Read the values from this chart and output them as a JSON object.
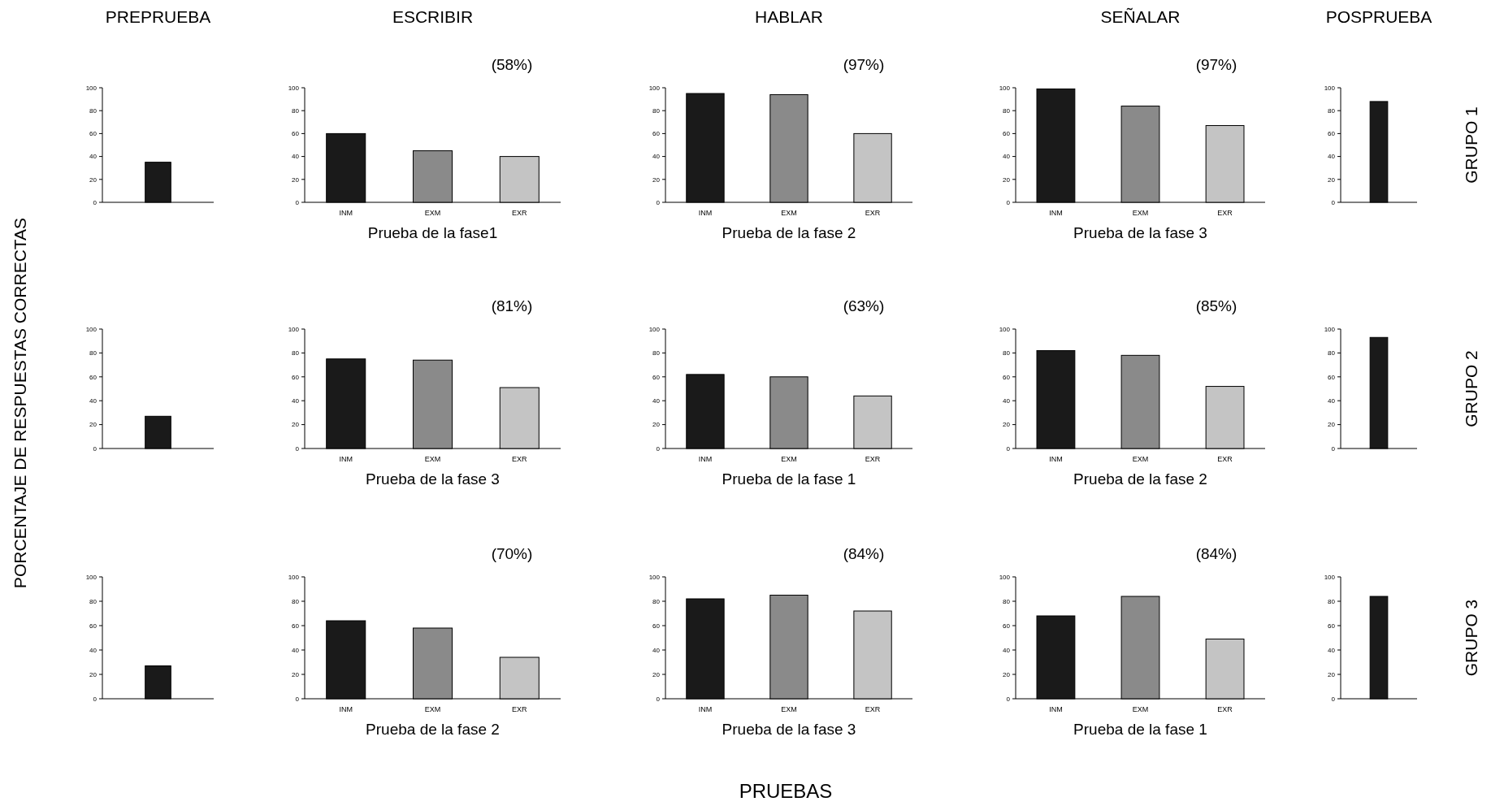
{
  "chart_data": [
    {
      "type": "bar",
      "title": "PREPRUEBA",
      "categories": [
        null
      ],
      "values": [
        35
      ],
      "colors": [
        "#1a1a1a"
      ],
      "ylim": [
        0,
        100
      ],
      "yticks": [
        0,
        20,
        40,
        60,
        80,
        100
      ]
    },
    {
      "type": "bar",
      "title": "ESCRIBIR",
      "xlabel": "Prueba de la fase1",
      "annotations": [
        "(58%)"
      ],
      "categories": [
        "INM",
        "EXM",
        "EXR"
      ],
      "values": [
        60,
        45,
        40
      ],
      "colors": [
        "#1a1a1a",
        "#8a8a8a",
        "#c4c4c4"
      ],
      "ylim": [
        0,
        100
      ],
      "yticks": [
        0,
        20,
        40,
        60,
        80,
        100
      ]
    },
    {
      "type": "bar",
      "title": "HABLAR",
      "xlabel": "Prueba de la fase 2",
      "annotations": [
        "(97%)"
      ],
      "categories": [
        "INM",
        "EXM",
        "EXR"
      ],
      "values": [
        95,
        94,
        60
      ],
      "colors": [
        "#1a1a1a",
        "#8a8a8a",
        "#c4c4c4"
      ],
      "ylim": [
        0,
        100
      ],
      "yticks": [
        0,
        20,
        40,
        60,
        80,
        100
      ]
    },
    {
      "type": "bar",
      "title": "SEÑALAR",
      "xlabel": "Prueba de la fase 3",
      "annotations": [
        "(97%)"
      ],
      "categories": [
        "INM",
        "EXM",
        "EXR"
      ],
      "values": [
        99,
        84,
        67
      ],
      "colors": [
        "#1a1a1a",
        "#8a8a8a",
        "#c4c4c4"
      ],
      "ylim": [
        0,
        100
      ],
      "yticks": [
        0,
        20,
        40,
        60,
        80,
        100
      ]
    },
    {
      "type": "bar",
      "title": "POSPRUEBA",
      "annotations": [
        "GRUPO 1"
      ],
      "categories": [
        null
      ],
      "values": [
        88
      ],
      "colors": [
        "#1a1a1a"
      ],
      "ylim": [
        0,
        100
      ],
      "yticks": [
        0,
        20,
        40,
        60,
        80,
        100
      ]
    },
    {
      "type": "bar",
      "ylabel": "PORCENTAJE DE RESPUESTAS CORRECTAS",
      "categories": [
        null
      ],
      "values": [
        27
      ],
      "colors": [
        "#1a1a1a"
      ],
      "ylim": [
        0,
        100
      ],
      "yticks": [
        0,
        20,
        40,
        60,
        80,
        100
      ]
    },
    {
      "type": "bar",
      "xlabel": "Prueba de la fase 3",
      "annotations": [
        "(81%)"
      ],
      "categories": [
        "INM",
        "EXM",
        "EXR"
      ],
      "values": [
        75,
        74,
        51
      ],
      "colors": [
        "#1a1a1a",
        "#8a8a8a",
        "#c4c4c4"
      ],
      "ylim": [
        0,
        100
      ],
      "yticks": [
        0,
        20,
        40,
        60,
        80,
        100
      ]
    },
    {
      "type": "bar",
      "xlabel": "Prueba de la fase 1",
      "annotations": [
        "(63%)"
      ],
      "categories": [
        "INM",
        "EXM",
        "EXR"
      ],
      "values": [
        62,
        60,
        44
      ],
      "colors": [
        "#1a1a1a",
        "#8a8a8a",
        "#c4c4c4"
      ],
      "ylim": [
        0,
        100
      ],
      "yticks": [
        0,
        20,
        40,
        60,
        80,
        100
      ]
    },
    {
      "type": "bar",
      "xlabel": "Prueba de la fase 2",
      "annotations": [
        "(85%)"
      ],
      "categories": [
        "INM",
        "EXM",
        "EXR"
      ],
      "values": [
        82,
        78,
        52
      ],
      "colors": [
        "#1a1a1a",
        "#8a8a8a",
        "#c4c4c4"
      ],
      "ylim": [
        0,
        100
      ],
      "yticks": [
        0,
        20,
        40,
        60,
        80,
        100
      ]
    },
    {
      "type": "bar",
      "annotations": [
        "GRUPO 2"
      ],
      "categories": [
        null
      ],
      "values": [
        93
      ],
      "colors": [
        "#1a1a1a"
      ],
      "ylim": [
        0,
        100
      ],
      "yticks": [
        0,
        20,
        40,
        60,
        80,
        100
      ]
    },
    {
      "type": "bar",
      "categories": [
        null
      ],
      "values": [
        27
      ],
      "colors": [
        "#1a1a1a"
      ],
      "ylim": [
        0,
        100
      ],
      "yticks": [
        0,
        20,
        40,
        60,
        80,
        100
      ]
    },
    {
      "type": "bar",
      "xlabel": "Prueba de la fase 2",
      "annotations": [
        "(70%)"
      ],
      "categories": [
        "INM",
        "EXM",
        "EXR"
      ],
      "values": [
        64,
        58,
        34
      ],
      "colors": [
        "#1a1a1a",
        "#8a8a8a",
        "#c4c4c4"
      ],
      "ylim": [
        0,
        100
      ],
      "yticks": [
        0,
        20,
        40,
        60,
        80,
        100
      ]
    },
    {
      "type": "bar",
      "xlabel": "Prueba de la fase 3",
      "annotations": [
        "(84%)"
      ],
      "categories": [
        "INM",
        "EXM",
        "EXR"
      ],
      "values": [
        82,
        85,
        72
      ],
      "colors": [
        "#1a1a1a",
        "#8a8a8a",
        "#c4c4c4"
      ],
      "ylim": [
        0,
        100
      ],
      "yticks": [
        0,
        20,
        40,
        60,
        80,
        100
      ]
    },
    {
      "type": "bar",
      "xlabel": "Prueba de la fase 1",
      "annotations": [
        "(84%)",
        "PRUEBAS"
      ],
      "categories": [
        "INM",
        "EXM",
        "EXR"
      ],
      "values": [
        68,
        84,
        49
      ],
      "colors": [
        "#1a1a1a",
        "#8a8a8a",
        "#c4c4c4"
      ],
      "ylim": [
        0,
        100
      ],
      "yticks": [
        0,
        20,
        40,
        60,
        80,
        100
      ]
    },
    {
      "type": "bar",
      "annotations": [
        "GRUPO 3"
      ],
      "categories": [
        null
      ],
      "values": [
        84
      ],
      "colors": [
        "#1a1a1a"
      ],
      "ylim": [
        0,
        100
      ],
      "yticks": [
        0,
        20,
        40,
        60,
        80,
        100
      ]
    }
  ]
}
